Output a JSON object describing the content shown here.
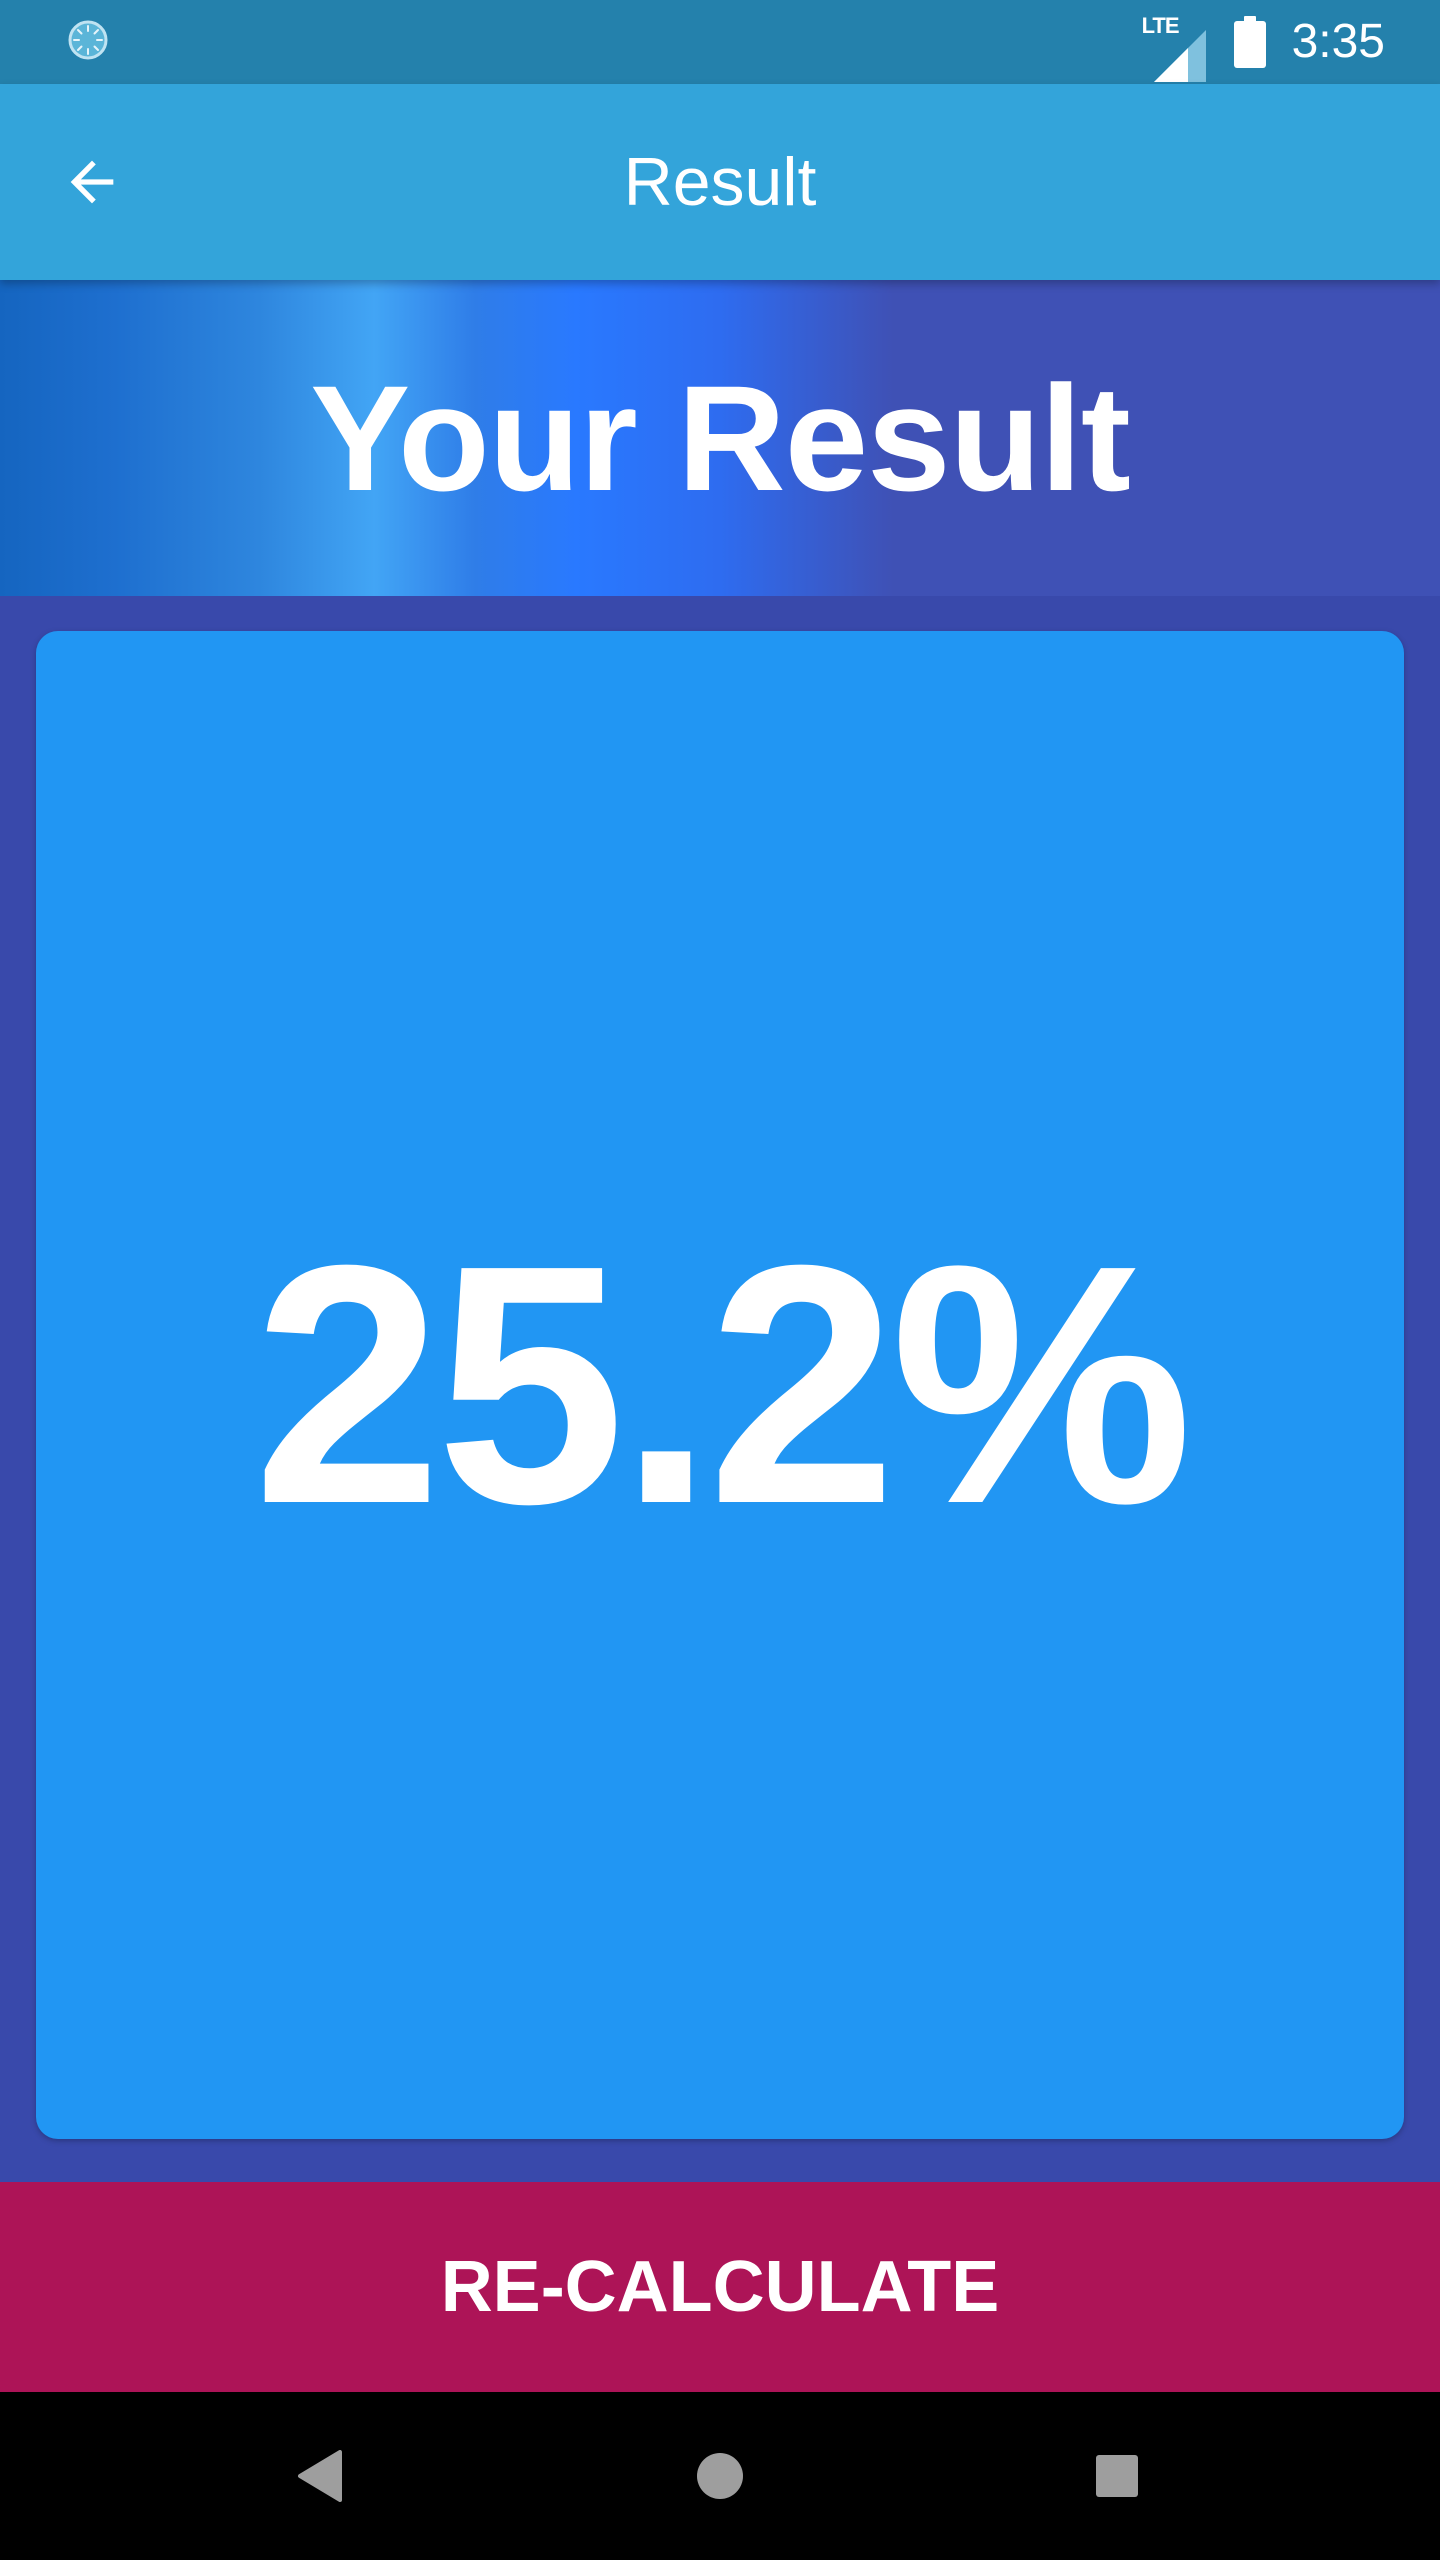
{
  "status_bar": {
    "network_label": "LTE",
    "time": "3:35",
    "icons": {
      "spinner": "loading-spinner-icon",
      "signal": "cell-signal-icon",
      "battery": "battery-icon"
    }
  },
  "app_bar": {
    "title": "Result",
    "back_icon": "arrow-back-icon"
  },
  "hero": {
    "title": "Your Result"
  },
  "result": {
    "value": "25.2%"
  },
  "actions": {
    "recalculate_label": "RE-CALCULATE"
  },
  "nav_bar": {
    "icons": [
      "nav-back-icon",
      "nav-home-icon",
      "nav-recents-icon"
    ]
  },
  "colors": {
    "status_bar": "#2481AC",
    "app_bar": "#33A4DA",
    "background": "#3949AB",
    "card": "#2196F3",
    "button": "#AD1457",
    "nav_bar": "#000000",
    "text": "#FFFFFF"
  }
}
